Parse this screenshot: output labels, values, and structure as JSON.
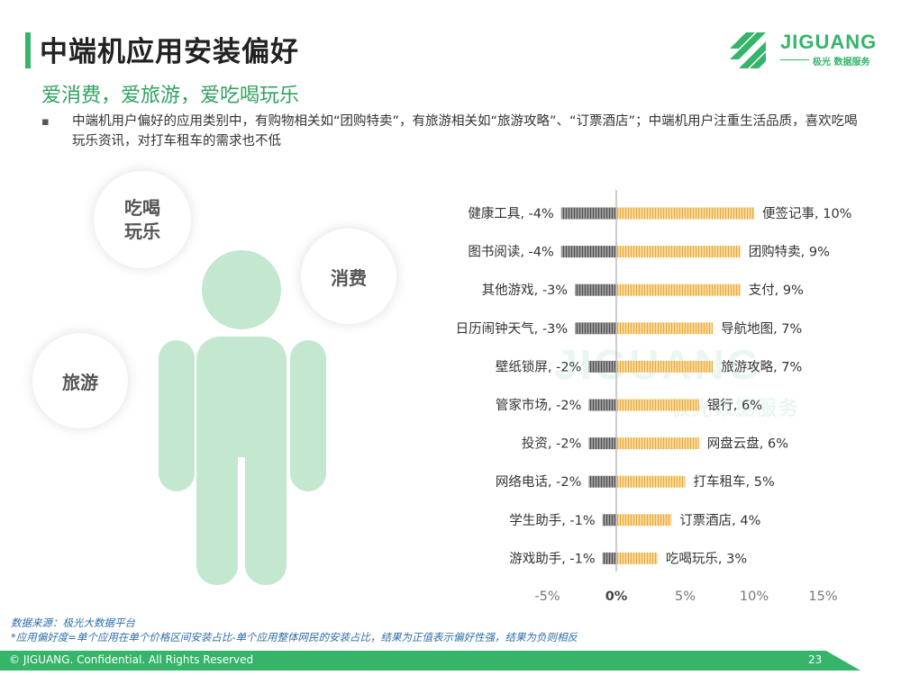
{
  "header": {
    "title": "中端机应用安装偏好",
    "subtitle": "爱消费，爱旅游，爱吃喝玩乐",
    "bullet": "中端机用户偏好的应用类别中，有购物相关如“团购特卖”，有旅游相关如“旅游攻略”、“订票酒店”；中端机用户注重生活品质，喜欢吃喝玩乐资讯，对打车租车的需求也不低",
    "bullet_symbol": "▪"
  },
  "logo": {
    "name": "JIGUANG",
    "tagline": "极光 数据服务",
    "brand_color": "#35b46a"
  },
  "watermark": {
    "text": "JIGUANG",
    "sub": "极光数据服务"
  },
  "bubbles": {
    "chihe_line1": "吃喝",
    "chihe_line2": "玩乐",
    "xiaofei": "消费",
    "lvyou": "旅游"
  },
  "chart_data": {
    "type": "bar",
    "orientation": "horizontal",
    "rows": [
      {
        "neg_label": "健康工具",
        "neg_value": -4,
        "pos_label": "便签记事",
        "pos_value": 10
      },
      {
        "neg_label": "图书阅读",
        "neg_value": -4,
        "pos_label": "团购特卖",
        "pos_value": 9
      },
      {
        "neg_label": "其他游戏",
        "neg_value": -3,
        "pos_label": "支付",
        "pos_value": 9
      },
      {
        "neg_label": "日历闹钟天气",
        "neg_value": -3,
        "pos_label": "导航地图",
        "pos_value": 7
      },
      {
        "neg_label": "壁纸锁屏",
        "neg_value": -2,
        "pos_label": "旅游攻略",
        "pos_value": 7
      },
      {
        "neg_label": "管家市场",
        "neg_value": -2,
        "pos_label": "银行",
        "pos_value": 6
      },
      {
        "neg_label": "投资",
        "neg_value": -2,
        "pos_label": "网盘云盘",
        "pos_value": 6
      },
      {
        "neg_label": "网络电话",
        "neg_value": -2,
        "pos_label": "打车租车",
        "pos_value": 5
      },
      {
        "neg_label": "学生助手",
        "neg_value": -1,
        "pos_label": "订票酒店",
        "pos_value": 4
      },
      {
        "neg_label": "游戏助手",
        "neg_value": -1,
        "pos_label": "吃喝玩乐",
        "pos_value": 3
      }
    ],
    "xlim": [
      -5,
      15
    ],
    "xticks": [
      -5,
      0,
      5,
      10,
      15
    ],
    "xtick_labels": [
      "-5%",
      "0%",
      "5%",
      "10%",
      "15%"
    ],
    "value_suffix": "%",
    "grid": false,
    "colors": {
      "negative": "#7a7a7a",
      "positive": "#f5c97a",
      "axis": "#bbbbbb"
    }
  },
  "footer": {
    "source": "数据来源：极光大数据平台",
    "note": "*应用偏好度=单个应用在单个价格区间安装占比-单个应用整体网民的安装占比，结果为正值表示偏好性强，结果为负则相反",
    "copyright": "© JIGUANG. Confidential. All Rights Reserved",
    "page": "23"
  }
}
